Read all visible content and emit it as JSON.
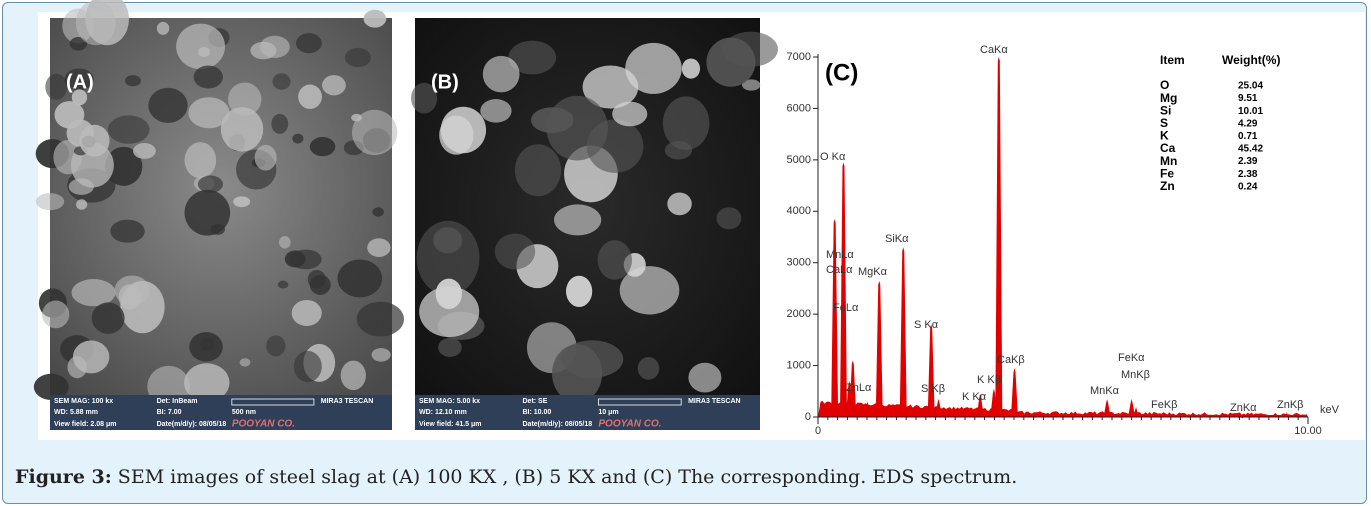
{
  "caption": {
    "label": "Figure 3:",
    "text": " SEM images of steel slag at (A) 100 KX , (B) 5 KX and (C) The corresponding. EDS spectrum."
  },
  "panels": [
    {
      "label": "(A)",
      "info": [
        "SEM MAG: 100 kx",
        "Det: InBeam",
        "WD: 5.88 mm",
        "BI: 7.00",
        "500 nm",
        "MIRA3 TESCAN",
        "View field: 2.08 μm",
        "Date(m/d/y): 08/05/18",
        "POOYAN CO."
      ]
    },
    {
      "label": "(B)",
      "info": [
        "SEM MAG: 5.00 kx",
        "Det: SE",
        "WD: 12.10 mm",
        "BI: 10.00",
        "10 μm",
        "MIRA3 TESCAN",
        "View field: 41.5 μm",
        "Date(m/d/y): 08/05/18",
        "POOYAN CO."
      ]
    }
  ],
  "spectrum": {
    "label": "(C)",
    "ylim": [
      0,
      7000
    ],
    "yticks": [
      0,
      1000,
      2000,
      3000,
      4000,
      5000,
      6000,
      7000
    ],
    "xlim": [
      0,
      10
    ],
    "xticks": [
      0,
      {
        "value": 10,
        "label": "10.00"
      }
    ],
    "x_unit": "keV",
    "color": "#e00000",
    "peaks": [
      {
        "label": "CaLα",
        "energy": 0.34,
        "counts": 3850
      },
      {
        "label": "O Kα",
        "energy": 0.52,
        "counts": 4950
      },
      {
        "label": "MnLα",
        "energy": 0.64,
        "counts": 700
      },
      {
        "label": "FeLα",
        "energy": 0.71,
        "counts": 1100
      },
      {
        "label": "ZnLα",
        "energy": 1.01,
        "counts": 300
      },
      {
        "label": "MgKα",
        "energy": 1.25,
        "counts": 2650
      },
      {
        "label": "SiKα",
        "energy": 1.74,
        "counts": 3300
      },
      {
        "label": "S Kα",
        "energy": 2.31,
        "counts": 1800
      },
      {
        "label": "S Kβ",
        "energy": 2.46,
        "counts": 350
      },
      {
        "label": "K Kα",
        "energy": 3.31,
        "counts": 450
      },
      {
        "label": "K Kβ",
        "energy": 3.59,
        "counts": 550
      },
      {
        "label": "CaKα",
        "energy": 3.69,
        "counts": 7000
      },
      {
        "label": "CaKβ",
        "energy": 4.01,
        "counts": 950
      },
      {
        "label": "MnKα",
        "energy": 5.9,
        "counts": 350
      },
      {
        "label": "FeKα",
        "energy": 6.4,
        "counts": 350
      },
      {
        "label": "MnKβ",
        "energy": 6.49,
        "counts": 200
      },
      {
        "label": "FeKβ",
        "energy": 7.06,
        "counts": 100
      },
      {
        "label": "ZnKα",
        "energy": 8.63,
        "counts": 50
      },
      {
        "label": "ZnKβ",
        "energy": 9.57,
        "counts": 100
      }
    ],
    "table": {
      "header": [
        "Item",
        "Weight(%)"
      ],
      "rows": [
        [
          "O",
          25.04
        ],
        [
          "Mg",
          9.51
        ],
        [
          "Si",
          10.01
        ],
        [
          "S",
          4.29
        ],
        [
          "K",
          0.71
        ],
        [
          "Ca",
          45.42
        ],
        [
          "Mn",
          2.39
        ],
        [
          "Fe",
          2.38
        ],
        [
          "Zn",
          0.24
        ]
      ]
    }
  }
}
